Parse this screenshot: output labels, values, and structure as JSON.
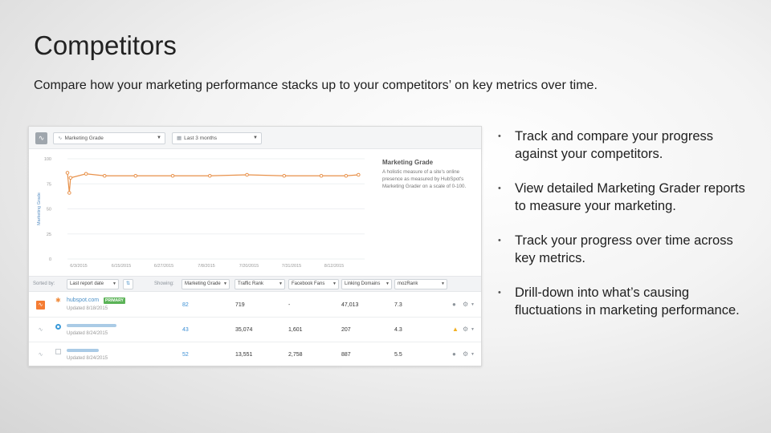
{
  "slide": {
    "title": "Competitors",
    "subtitle": "Compare how your marketing performance stacks up to your competitors’ on key metrics over time."
  },
  "screenshot": {
    "toolbar": {
      "metric_select": "Marketing Grade",
      "range_select": "Last 3 months"
    },
    "side_info": {
      "heading": "Marketing Grade",
      "description": "A holistic measure of a site's online presence as measured by HubSpot's Marketing Grader on a scale of 0-100."
    },
    "filterbar": {
      "sort_label": "Sorted by:",
      "sort_select": "Last report date",
      "showing_label": "Showing:",
      "columns": [
        "Marketing Grade",
        "Traffic Rank",
        "Facebook Fans",
        "Linking Domains",
        "mozRank"
      ]
    },
    "rows": [
      {
        "site": "hubspot.com",
        "badge": "PRIMARY",
        "updated": "Updated 8/18/2015",
        "grade": "82",
        "traffic": "719",
        "fans": "-",
        "domains": "47,013",
        "moz": "7.3"
      },
      {
        "site": "",
        "badge": "",
        "updated": "Updated 8/24/2015",
        "grade": "43",
        "traffic": "35,074",
        "fans": "1,601",
        "domains": "207",
        "moz": "4.3"
      },
      {
        "site": "",
        "badge": "",
        "updated": "Updated 8/24/2015",
        "grade": "52",
        "traffic": "13,551",
        "fans": "2,758",
        "domains": "887",
        "moz": "5.5"
      }
    ]
  },
  "chart_data": {
    "type": "line",
    "title": "",
    "xlabel": "",
    "ylabel": "Marketing Grade",
    "ylim": [
      0,
      100
    ],
    "y_ticks": [
      "100",
      "75",
      "50",
      "25",
      "0"
    ],
    "x_ticks": [
      "6/3/2015",
      "6/15/2015",
      "6/27/2015",
      "7/8/2015",
      "7/20/2015",
      "7/31/2015",
      "8/12/2015"
    ],
    "color": "#e8914a",
    "series": [
      {
        "name": "",
        "values": [
          {
            "x": 0.0,
            "y": 86
          },
          {
            "x": 0.3,
            "y": 66
          },
          {
            "x": 0.5,
            "y": 81
          },
          {
            "x": 3.0,
            "y": 85
          },
          {
            "x": 6.0,
            "y": 83
          },
          {
            "x": 11.0,
            "y": 83
          },
          {
            "x": 17.0,
            "y": 83
          },
          {
            "x": 23.0,
            "y": 83
          },
          {
            "x": 29.0,
            "y": 84
          },
          {
            "x": 35.0,
            "y": 83
          },
          {
            "x": 41.0,
            "y": 83
          },
          {
            "x": 45.0,
            "y": 83
          },
          {
            "x": 47.0,
            "y": 84
          }
        ]
      }
    ]
  },
  "bullets": [
    "Track and compare your progress against your competitors.",
    "View detailed Marketing Grader reports to measure your marketing.",
    "Track your progress over time across key metrics.",
    "Drill-down into what’s causing fluctuations in marketing performance."
  ]
}
